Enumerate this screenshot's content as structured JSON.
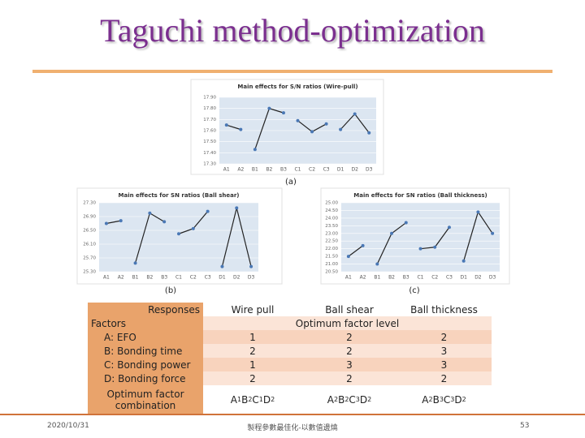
{
  "title": "Taguchi method-optimization",
  "chart_data": [
    {
      "type": "line",
      "title": "Main effects for S/N ratios (Wire-pull)",
      "caption": "(a)",
      "categories": [
        "A1",
        "A2",
        "B1",
        "B2",
        "B3",
        "C1",
        "C2",
        "C3",
        "D1",
        "D2",
        "D3"
      ],
      "series": [
        {
          "name": "S/N",
          "color": "#4a78b5",
          "values": [
            17.65,
            17.61,
            17.43,
            17.8,
            17.76,
            17.69,
            17.59,
            17.66,
            17.61,
            17.75,
            17.58
          ]
        }
      ],
      "ylim": [
        17.3,
        17.9
      ],
      "yticks": [
        {
          "value": 17.3,
          "label": "17.30"
        },
        {
          "value": 17.4,
          "label": "17.40"
        },
        {
          "value": 17.5,
          "label": "17.50"
        },
        {
          "value": 17.6,
          "label": "17.60"
        },
        {
          "value": 17.7,
          "label": "17.70"
        },
        {
          "value": 17.8,
          "label": "17.80"
        },
        {
          "value": 17.9,
          "label": "17.90"
        }
      ]
    },
    {
      "type": "line",
      "title": "Main effects for SN ratios (Ball shear)",
      "caption": "(b)",
      "categories": [
        "A1",
        "A2",
        "B1",
        "B2",
        "B3",
        "C1",
        "C2",
        "C3",
        "D1",
        "D2",
        "D3"
      ],
      "series": [
        {
          "name": "SN",
          "color": "#4a78b5",
          "values": [
            26.7,
            26.78,
            25.55,
            27.0,
            26.75,
            26.4,
            26.55,
            27.05,
            25.45,
            27.15,
            25.45
          ]
        }
      ],
      "ylim": [
        25.3,
        27.3
      ],
      "yticks": [
        {
          "value": 25.3,
          "label": "25.30"
        },
        {
          "value": 25.7,
          "label": "25.70"
        },
        {
          "value": 26.1,
          "label": "26.10"
        },
        {
          "value": 26.5,
          "label": "26.50"
        },
        {
          "value": 26.9,
          "label": "26.90"
        },
        {
          "value": 27.3,
          "label": "27.30"
        }
      ]
    },
    {
      "type": "line",
      "title": "Main effects for SN ratios (Ball thickness)",
      "caption": "(c)",
      "categories": [
        "A1",
        "A2",
        "B1",
        "B2",
        "B3",
        "C1",
        "C2",
        "C3",
        "D1",
        "D2",
        "D3"
      ],
      "series": [
        {
          "name": "SN",
          "color": "#4a78b5",
          "values": [
            21.5,
            22.2,
            21.0,
            23.0,
            23.7,
            22.0,
            22.1,
            23.4,
            21.2,
            24.4,
            23.0
          ]
        }
      ],
      "ylim": [
        20.5,
        25
      ],
      "yticks": [
        {
          "value": 20.5,
          "label": "20.50"
        },
        {
          "value": 21,
          "label": "21.00"
        },
        {
          "value": 21.5,
          "label": "21.50"
        },
        {
          "value": 22,
          "label": "22.00"
        },
        {
          "value": 22.5,
          "label": "22.50"
        },
        {
          "value": 23,
          "label": "23.00"
        },
        {
          "value": 23.5,
          "label": "23.50"
        },
        {
          "value": 24,
          "label": "24.00"
        },
        {
          "value": 24.5,
          "label": "24.50"
        },
        {
          "value": 25,
          "label": "25.00"
        }
      ]
    }
  ],
  "table": {
    "header": [
      "Responses",
      "Wire pull",
      "Ball shear",
      "Ball thickness"
    ],
    "factors_label": "Factors",
    "subheader": "Optimum factor level",
    "rows": [
      [
        "A: EFO",
        "1",
        "2",
        "2"
      ],
      [
        "B: Bonding time",
        "2",
        "2",
        "3"
      ],
      [
        "C: Bonding power",
        "1",
        "3",
        "3"
      ],
      [
        "D: Bonding force",
        "2",
        "2",
        "2"
      ]
    ],
    "combination": [
      "Optimum factor combination",
      "A1B2C1D2",
      "A2B2C3D2",
      "A2B3C3D2"
    ]
  },
  "footer": {
    "date": "2020/10/31",
    "center": "製程參數最佳化-以數值邊燒",
    "page": "53"
  }
}
